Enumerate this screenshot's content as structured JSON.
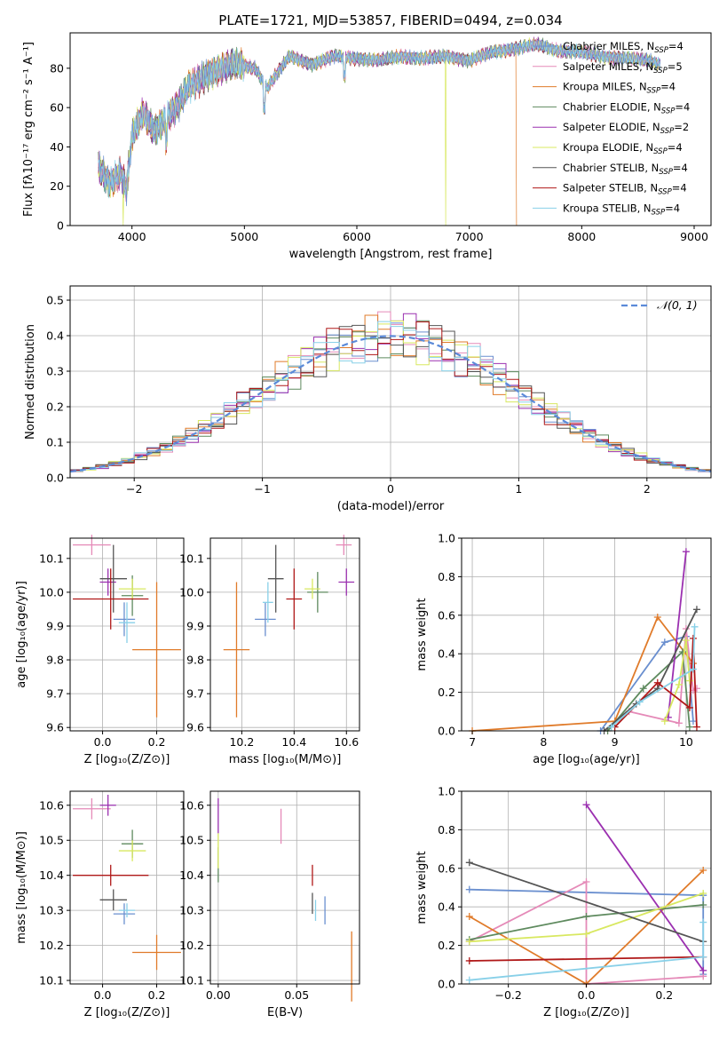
{
  "title": "PLATE=1721, MJD=53857, FIBERID=0494, z=0.034",
  "colors": [
    "#6a8fcf",
    "#e58ab8",
    "#e07b2a",
    "#5e8a5e",
    "#9b30b0",
    "#d8e860",
    "#555555",
    "#b01818",
    "#88d0e8"
  ],
  "legend_entries": [
    {
      "base": "Chabrier MILES, N",
      "sub": "SSP",
      "tail": "=4"
    },
    {
      "base": "Salpeter MILES, N",
      "sub": "SSP",
      "tail": "=5"
    },
    {
      "base": "Kroupa MILES, N",
      "sub": "SSP",
      "tail": "=4"
    },
    {
      "base": "Chabrier ELODIE, N",
      "sub": "SSP",
      "tail": "=4"
    },
    {
      "base": "Salpeter ELODIE, N",
      "sub": "SSP",
      "tail": "=2"
    },
    {
      "base": "Kroupa ELODIE, N",
      "sub": "SSP",
      "tail": "=4"
    },
    {
      "base": "Chabrier STELIB, N",
      "sub": "SSP",
      "tail": "=4"
    },
    {
      "base": "Salpeter STELIB, N",
      "sub": "SSP",
      "tail": "=4"
    },
    {
      "base": "Kroupa STELIB, N",
      "sub": "SSP",
      "tail": "=4"
    }
  ],
  "labels": {
    "spectrum_y": "Flux [fλ10⁻¹⁷ erg cm⁻² s⁻¹ A⁻¹]",
    "spectrum_x": "wavelength [Angstrom, rest frame]",
    "hist_y": "Normed distribution",
    "hist_x": "(data-model)/error",
    "hist_legend": "𝒩(0, 1)",
    "age_y": "age  [log₁₀(age/yr)]",
    "z_x": "Z [log₁₀(Z/Z⊙)]",
    "mass_x": "mass [log₁₀(M/M⊙)]",
    "mass_y": "mass [log₁₀(M/M⊙)]",
    "ebv_x": "E(B-V)",
    "mw_y": "mass weight",
    "mw_age_x": "age  [log₁₀(age/yr)]",
    "mw_z_x": "Z [log₁₀(Z/Z⊙)]"
  },
  "chart_data": [
    {
      "type": "line",
      "title": "PLATE=1721, MJD=53857, FIBERID=0494, z=0.034",
      "xlabel": "wavelength [Angstrom, rest frame]",
      "ylabel": "Flux [fλ10⁻¹⁷ erg cm⁻² s⁻¹ A⁻¹]",
      "xlim": [
        3450,
        9150
      ],
      "ylim": [
        0,
        98
      ],
      "xticks": [
        4000,
        5000,
        6000,
        7000,
        8000,
        9000
      ],
      "yticks": [
        0,
        20,
        40,
        60,
        80
      ],
      "x": [
        3700,
        3800,
        3900,
        3950,
        4000,
        4100,
        4200,
        4300,
        4400,
        4500,
        4700,
        4900,
        5100,
        5200,
        5400,
        5600,
        5800,
        6000,
        6200,
        6400,
        6600,
        6800,
        7000,
        7200,
        7400,
        7600,
        7800,
        8000,
        8200,
        8400,
        8600,
        8700
      ],
      "y": [
        30,
        22,
        27,
        18,
        45,
        57,
        48,
        55,
        60,
        70,
        78,
        82,
        80,
        70,
        86,
        82,
        86,
        85,
        84,
        86,
        85,
        86,
        84,
        88,
        90,
        92,
        89,
        88,
        86,
        85,
        84,
        82
      ],
      "dropouts": [
        {
          "series": "Kroupa ELODIE, NSSP=4",
          "x": 3920
        },
        {
          "series": "Kroupa ELODIE, NSSP=4",
          "x": 6790
        },
        {
          "series": "Kroupa MILES, NSSP=4",
          "x": 7420
        }
      ],
      "legend_position": "upper-right",
      "grid": false
    },
    {
      "type": "histogram",
      "xlabel": "(data-model)/error",
      "ylabel": "Normed distribution",
      "xlim": [
        -2.5,
        2.5
      ],
      "ylim": [
        0,
        0.54
      ],
      "xticks": [
        -2,
        -1,
        0,
        1,
        2
      ],
      "yticks": [
        0.0,
        0.1,
        0.2,
        0.3,
        0.4,
        0.5
      ],
      "bin_width": 0.1,
      "reference_curve": {
        "name": "𝒩(0, 1)",
        "mean": 0,
        "sigma": 1
      },
      "legend_position": "upper-right",
      "grid": true
    },
    {
      "type": "errorbar",
      "xlabel": "Z [log₁₀(Z/Z⊙)]",
      "ylabel": "age  [log₁₀(age/yr)]",
      "xlim": [
        -0.12,
        0.3
      ],
      "ylim": [
        9.59,
        10.16
      ],
      "xticks": [
        0.0,
        0.2
      ],
      "yticks": [
        9.6,
        9.7,
        9.8,
        9.9,
        10.0,
        10.1
      ],
      "points": [
        {
          "x": 0.08,
          "y": 9.92,
          "xerr": 0.04,
          "yerr": 0.05
        },
        {
          "x": -0.04,
          "y": 10.14,
          "xerr": 0.07,
          "yerr": 0.03
        },
        {
          "x": 0.2,
          "y": 9.83,
          "xerr": 0.09,
          "yerr": 0.2
        },
        {
          "x": 0.11,
          "y": 9.99,
          "xerr": 0.04,
          "yerr": 0.06
        },
        {
          "x": 0.02,
          "y": 10.03,
          "xerr": 0.03,
          "yerr": 0.04
        },
        {
          "x": 0.11,
          "y": 10.01,
          "xerr": 0.05,
          "yerr": 0.03
        },
        {
          "x": 0.04,
          "y": 10.04,
          "xerr": 0.05,
          "yerr": 0.1
        },
        {
          "x": 0.03,
          "y": 9.98,
          "xerr": 0.14,
          "yerr": 0.09
        },
        {
          "x": 0.09,
          "y": 9.91,
          "xerr": 0.03,
          "yerr": 0.06
        }
      ],
      "grid": true
    },
    {
      "type": "errorbar",
      "xlabel": "mass [log₁₀(M/M⊙)]",
      "ylabel": "",
      "xlim": [
        10.08,
        10.65
      ],
      "ylim": [
        9.59,
        10.16
      ],
      "xticks": [
        10.2,
        10.4,
        10.6
      ],
      "yticks": [
        9.6,
        9.7,
        9.8,
        9.9,
        10.0,
        10.1
      ],
      "points": [
        {
          "x": 10.29,
          "y": 9.92,
          "xerr": 0.04,
          "yerr": 0.05
        },
        {
          "x": 10.59,
          "y": 10.14,
          "xerr": 0.03,
          "yerr": 0.03
        },
        {
          "x": 10.18,
          "y": 9.83,
          "xerr": 0.05,
          "yerr": 0.2
        },
        {
          "x": 10.49,
          "y": 10.0,
          "xerr": 0.04,
          "yerr": 0.06
        },
        {
          "x": 10.6,
          "y": 10.03,
          "xerr": 0.03,
          "yerr": 0.04
        },
        {
          "x": 10.47,
          "y": 10.01,
          "xerr": 0.03,
          "yerr": 0.03
        },
        {
          "x": 10.33,
          "y": 10.04,
          "xerr": 0.03,
          "yerr": 0.1
        },
        {
          "x": 10.4,
          "y": 9.98,
          "xerr": 0.03,
          "yerr": 0.09
        },
        {
          "x": 10.3,
          "y": 9.97,
          "xerr": 0.02,
          "yerr": 0.06
        }
      ],
      "grid": true
    },
    {
      "type": "line",
      "xlabel": "age  [log₁₀(age/yr)]",
      "ylabel": "mass weight",
      "xlim": [
        6.85,
        10.35
      ],
      "ylim": [
        0,
        1.0
      ],
      "xticks": [
        7,
        8,
        9,
        10
      ],
      "yticks": [
        0.0,
        0.2,
        0.4,
        0.6,
        0.8,
        1.0
      ],
      "series": [
        {
          "name": "Chabrier MILES, NSSP=4",
          "x": [
            8.8,
            9.7,
            10.0,
            10.1
          ],
          "y": [
            0.0,
            0.46,
            0.49,
            0.05
          ]
        },
        {
          "name": "Salpeter MILES, NSSP=5",
          "x": [
            9.2,
            9.9,
            10.0,
            10.1,
            10.15
          ],
          "y": [
            0.1,
            0.04,
            0.53,
            0.21,
            0.22
          ]
        },
        {
          "name": "Kroupa MILES, NSSP=4",
          "x": [
            7.0,
            9.0,
            9.6,
            10.1
          ],
          "y": [
            0.0,
            0.05,
            0.59,
            0.35
          ]
        },
        {
          "name": "Chabrier ELODIE, NSSP=4",
          "x": [
            8.9,
            9.4,
            9.95,
            10.05
          ],
          "y": [
            0.0,
            0.22,
            0.41,
            0.02
          ]
        },
        {
          "name": "Salpeter ELODIE, NSSP=2",
          "x": [
            9.75,
            10.0
          ],
          "y": [
            0.07,
            0.93
          ]
        },
        {
          "name": "Kroupa ELODIE, NSSP=4",
          "x": [
            9.7,
            9.9,
            10.0,
            10.05
          ],
          "y": [
            0.05,
            0.24,
            0.47,
            0.26
          ]
        },
        {
          "name": "Chabrier STELIB, NSSP=4",
          "x": [
            8.85,
            9.3,
            9.6,
            10.15
          ],
          "y": [
            0.0,
            0.14,
            0.22,
            0.63
          ]
        },
        {
          "name": "Salpeter STELIB, NSSP=4",
          "x": [
            9.0,
            9.6,
            10.05,
            10.1,
            10.15
          ],
          "y": [
            0.02,
            0.25,
            0.12,
            0.48,
            0.02
          ]
        },
        {
          "name": "Kroupa STELIB, NSSP=4",
          "x": [
            8.95,
            9.35,
            10.1,
            10.12
          ],
          "y": [
            0.02,
            0.15,
            0.32,
            0.54
          ]
        }
      ],
      "grid": true
    },
    {
      "type": "errorbar",
      "xlabel": "Z [log₁₀(Z/Z⊙)]",
      "ylabel": "mass [log₁₀(M/M⊙)]",
      "xlim": [
        -0.12,
        0.3
      ],
      "ylim": [
        10.09,
        10.64
      ],
      "xticks": [
        0.0,
        0.2
      ],
      "yticks": [
        10.1,
        10.2,
        10.3,
        10.4,
        10.5,
        10.6
      ],
      "points": [
        {
          "x": 0.08,
          "y": 10.29,
          "xerr": 0.04,
          "yerr": 0.03
        },
        {
          "x": -0.04,
          "y": 10.59,
          "xerr": 0.07,
          "yerr": 0.03
        },
        {
          "x": 0.2,
          "y": 10.18,
          "xerr": 0.09,
          "yerr": 0.05
        },
        {
          "x": 0.11,
          "y": 10.49,
          "xerr": 0.04,
          "yerr": 0.04
        },
        {
          "x": 0.02,
          "y": 10.6,
          "xerr": 0.03,
          "yerr": 0.03
        },
        {
          "x": 0.11,
          "y": 10.47,
          "xerr": 0.05,
          "yerr": 0.03
        },
        {
          "x": 0.04,
          "y": 10.33,
          "xerr": 0.05,
          "yerr": 0.03
        },
        {
          "x": 0.03,
          "y": 10.4,
          "xerr": 0.14,
          "yerr": 0.03
        },
        {
          "x": 0.09,
          "y": 10.3,
          "xerr": 0.03,
          "yerr": 0.02
        }
      ],
      "grid": true
    },
    {
      "type": "errorbar",
      "xlabel": "E(B-V)",
      "ylabel": "",
      "xlim": [
        -0.005,
        0.09
      ],
      "ylim": [
        10.09,
        10.64
      ],
      "xticks": [
        0.0,
        0.05
      ],
      "yticks": [
        10.1,
        10.2,
        10.3,
        10.4,
        10.5,
        10.6
      ],
      "points": [
        {
          "x": 0.068,
          "y": 10.3,
          "yerr": 0.04
        },
        {
          "x": 0.04,
          "y": 10.54,
          "yerr": 0.05
        },
        {
          "x": 0.085,
          "y": 10.14,
          "yerr": 0.1
        },
        {
          "x": 0.0,
          "y": 10.43,
          "yerr": 0.05
        },
        {
          "x": 0.0,
          "y": 10.57,
          "yerr": 0.05
        },
        {
          "x": 0.0,
          "y": 10.47,
          "yerr": 0.05
        },
        {
          "x": 0.06,
          "y": 10.32,
          "yerr": 0.03
        },
        {
          "x": 0.06,
          "y": 10.4,
          "yerr": 0.03
        },
        {
          "x": 0.062,
          "y": 10.3,
          "yerr": 0.03
        }
      ],
      "grid": true
    },
    {
      "type": "line",
      "xlabel": "Z [log₁₀(Z/Z⊙)]",
      "ylabel": "mass weight",
      "xlim": [
        -0.32,
        0.32
      ],
      "ylim": [
        0,
        1.0
      ],
      "xticks": [
        -0.2,
        0.0,
        0.2
      ],
      "yticks": [
        0.0,
        0.2,
        0.4,
        0.6,
        0.8,
        1.0
      ],
      "series": [
        {
          "name": "Chabrier MILES, NSSP=4",
          "x": [
            -0.3,
            0.3,
            0.3
          ],
          "y": [
            0.49,
            0.46,
            0.05
          ]
        },
        {
          "name": "Salpeter MILES, NSSP=5",
          "x": [
            -0.3,
            0.0,
            0.0,
            0.3
          ],
          "y": [
            0.22,
            0.53,
            0.0,
            0.04
          ]
        },
        {
          "name": "Kroupa MILES, NSSP=4",
          "x": [
            -0.3,
            0.0,
            0.3
          ],
          "y": [
            0.35,
            0.0,
            0.59
          ]
        },
        {
          "name": "Chabrier ELODIE, NSSP=4",
          "x": [
            -0.3,
            0.0,
            0.3
          ],
          "y": [
            0.23,
            0.35,
            0.41
          ]
        },
        {
          "name": "Salpeter ELODIE, NSSP=2",
          "x": [
            0.0,
            0.3
          ],
          "y": [
            0.93,
            0.07
          ]
        },
        {
          "name": "Kroupa ELODIE, NSSP=4",
          "x": [
            -0.3,
            0.0,
            0.3
          ],
          "y": [
            0.22,
            0.26,
            0.47
          ]
        },
        {
          "name": "Chabrier STELIB, NSSP=4",
          "x": [
            -0.3,
            0.3
          ],
          "y": [
            0.63,
            0.22
          ]
        },
        {
          "name": "Salpeter STELIB, NSSP=4",
          "x": [
            -0.3,
            0.3
          ],
          "y": [
            0.12,
            0.14
          ]
        },
        {
          "name": "Kroupa STELIB, NSSP=4",
          "x": [
            -0.3,
            0.3,
            0.3
          ],
          "y": [
            0.02,
            0.14,
            0.32
          ]
        }
      ],
      "grid": true
    }
  ]
}
